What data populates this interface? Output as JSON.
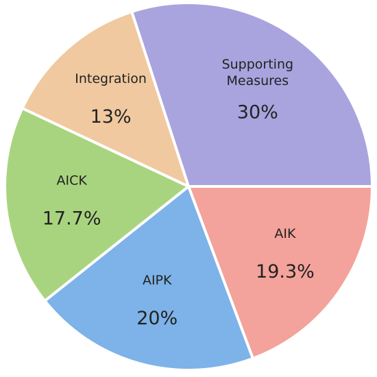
{
  "chart_data": {
    "type": "pie",
    "categories": [
      "Supporting Measures",
      "AIK",
      "AIPK",
      "AICK",
      "Integration"
    ],
    "values": [
      30,
      19.3,
      20,
      17.7,
      13
    ],
    "value_labels": [
      "30%",
      "19.3%",
      "20%",
      "17.7%",
      "13%"
    ],
    "colors": [
      "#a9a4de",
      "#f3a39b",
      "#7db3e8",
      "#a9d47f",
      "#f0c9a0"
    ]
  }
}
